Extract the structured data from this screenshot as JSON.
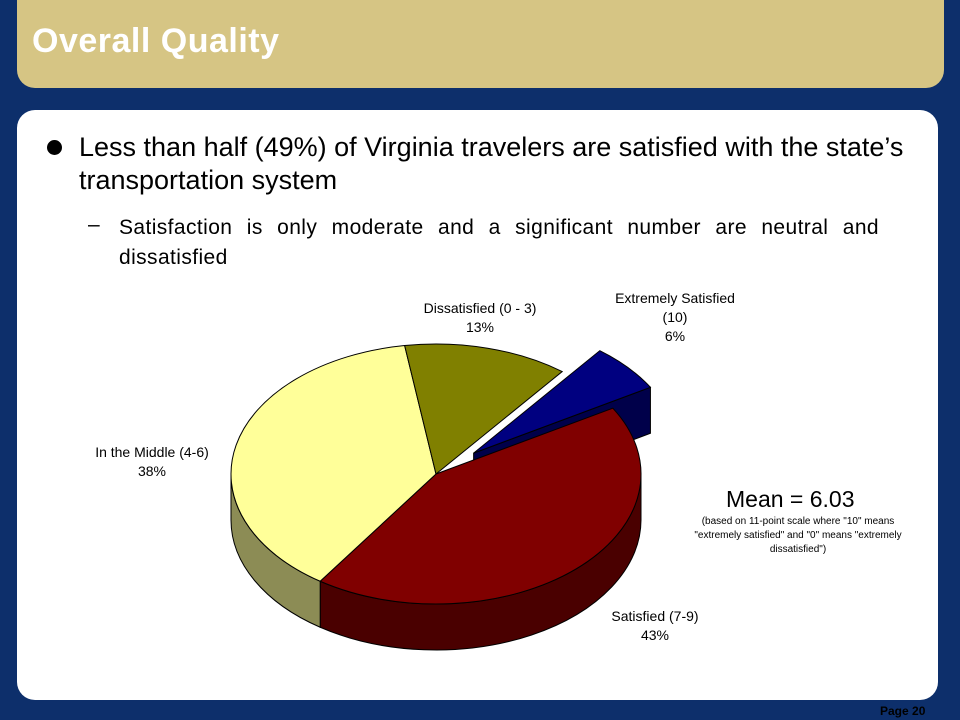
{
  "slide": {
    "title": "Overall Quality",
    "bullet": "Less than half (49%) of Virginia travelers are satisfied with the state’s transportation system",
    "sub_dash": "–",
    "sub_bullet": "Satisfaction is only moderate and a significant number are neutral and dissatisfied",
    "mean_title": "Mean = 6.03",
    "mean_note": "(based on 11-point scale where \"10\" means \"extremely satisfied\" and \"0\" means \"extremely dissatisfied\")",
    "page_label": "Page 20"
  },
  "chart_data": {
    "type": "pie",
    "style": "3d-exploded",
    "slices": [
      {
        "label": "Extremely Satisfied (10)",
        "label_lines": [
          "Extremely Satisfied",
          "(10)"
        ],
        "value": 6,
        "value_text": "6%",
        "color": "#000080",
        "side_color": "#00004a"
      },
      {
        "label": "Satisfied (7-9)",
        "label_lines": [
          "Satisfied (7-9)"
        ],
        "value": 43,
        "value_text": "43%",
        "color": "#800000",
        "side_color": "#4a0000"
      },
      {
        "label": "In the Middle (4-6)",
        "label_lines": [
          "In the Middle (4-6)"
        ],
        "value": 38,
        "value_text": "38%",
        "color": "#ffff99",
        "side_color": "#8c8c55"
      },
      {
        "label": "Dissatisfied (0 - 3)",
        "label_lines": [
          "Dissatisfied (0 - 3)"
        ],
        "value": 13,
        "value_text": "13%",
        "color": "#808000",
        "side_color": "#4a4a00"
      }
    ]
  }
}
